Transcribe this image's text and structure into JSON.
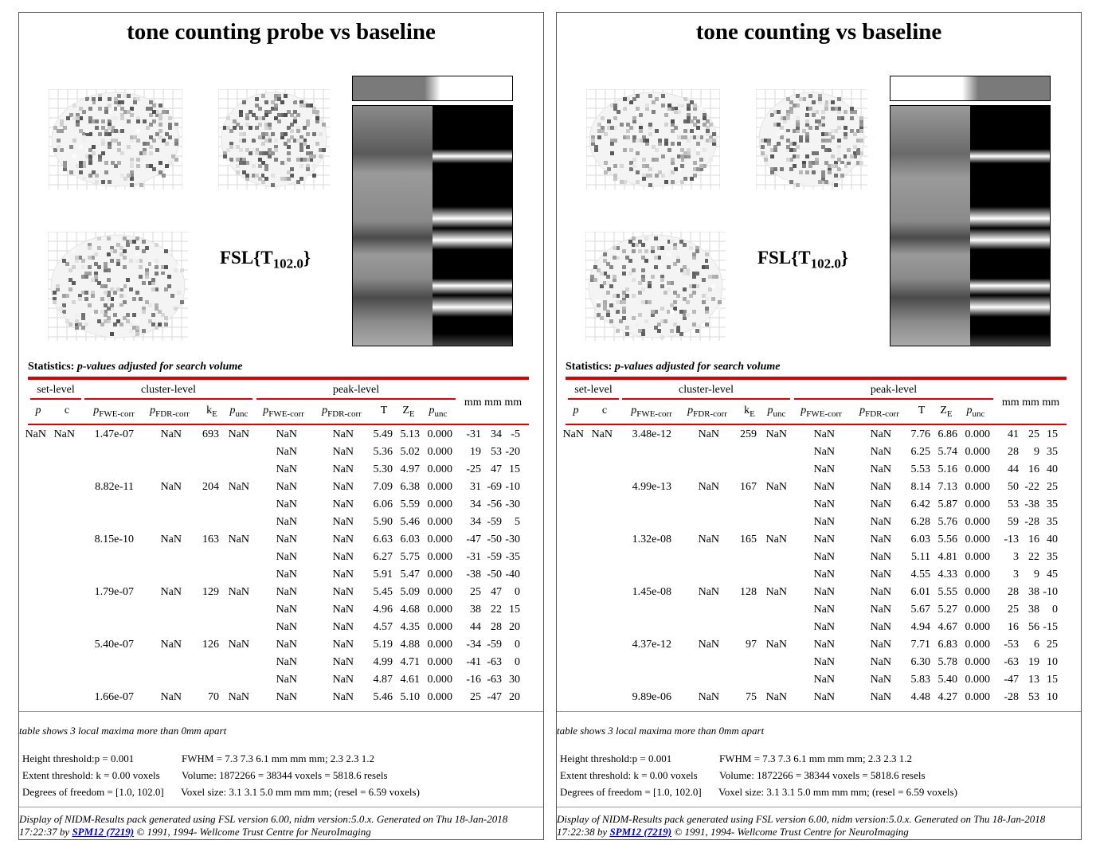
{
  "panels": [
    {
      "title": "tone counting probe vs baseline",
      "stat_label": "FSL{T",
      "stat_sub": "102.0",
      "stat_close": "}",
      "contrast_weights": [
        -1,
        1
      ],
      "stats_prefix": "Statistics:",
      "stats_italic": "p-values adjusted for search volume",
      "group_headers": [
        "set-level",
        "cluster-level",
        "peak-level",
        "mm mm mm"
      ],
      "col_headers": [
        "p",
        "c",
        "p",
        "FWE-corr",
        "p",
        "FDR-corr",
        "k",
        "E",
        "p",
        "unc",
        "p",
        "FWE-corr",
        "p",
        "FDR-corr",
        "T",
        "Z",
        "E",
        "p",
        "unc"
      ],
      "rows": [
        [
          "NaN",
          "NaN",
          "1.47e-07",
          "NaN",
          "693",
          "NaN",
          "NaN",
          "NaN",
          "5.49",
          "5.13",
          "0.000",
          "-31",
          "34",
          "-5"
        ],
        [
          "",
          "",
          "",
          "",
          "",
          "",
          "NaN",
          "NaN",
          "5.36",
          "5.02",
          "0.000",
          "19",
          "53",
          "-20"
        ],
        [
          "",
          "",
          "",
          "",
          "",
          "",
          "NaN",
          "NaN",
          "5.30",
          "4.97",
          "0.000",
          "-25",
          "47",
          "15"
        ],
        [
          "",
          "",
          "8.82e-11",
          "NaN",
          "204",
          "NaN",
          "NaN",
          "NaN",
          "7.09",
          "6.38",
          "0.000",
          "31",
          "-69",
          "-10"
        ],
        [
          "",
          "",
          "",
          "",
          "",
          "",
          "NaN",
          "NaN",
          "6.06",
          "5.59",
          "0.000",
          "34",
          "-56",
          "-30"
        ],
        [
          "",
          "",
          "",
          "",
          "",
          "",
          "NaN",
          "NaN",
          "5.90",
          "5.46",
          "0.000",
          "34",
          "-59",
          "5"
        ],
        [
          "",
          "",
          "8.15e-10",
          "NaN",
          "163",
          "NaN",
          "NaN",
          "NaN",
          "6.63",
          "6.03",
          "0.000",
          "-47",
          "-50",
          "-30"
        ],
        [
          "",
          "",
          "",
          "",
          "",
          "",
          "NaN",
          "NaN",
          "6.27",
          "5.75",
          "0.000",
          "-31",
          "-59",
          "-35"
        ],
        [
          "",
          "",
          "",
          "",
          "",
          "",
          "NaN",
          "NaN",
          "5.91",
          "5.47",
          "0.000",
          "-38",
          "-50",
          "-40"
        ],
        [
          "",
          "",
          "1.79e-07",
          "NaN",
          "129",
          "NaN",
          "NaN",
          "NaN",
          "5.45",
          "5.09",
          "0.000",
          "25",
          "47",
          "0"
        ],
        [
          "",
          "",
          "",
          "",
          "",
          "",
          "NaN",
          "NaN",
          "4.96",
          "4.68",
          "0.000",
          "38",
          "22",
          "15"
        ],
        [
          "",
          "",
          "",
          "",
          "",
          "",
          "NaN",
          "NaN",
          "4.57",
          "4.35",
          "0.000",
          "44",
          "28",
          "20"
        ],
        [
          "",
          "",
          "5.40e-07",
          "NaN",
          "126",
          "NaN",
          "NaN",
          "NaN",
          "5.19",
          "4.88",
          "0.000",
          "-34",
          "-59",
          "0"
        ],
        [
          "",
          "",
          "",
          "",
          "",
          "",
          "NaN",
          "NaN",
          "4.99",
          "4.71",
          "0.000",
          "-41",
          "-63",
          "0"
        ],
        [
          "",
          "",
          "",
          "",
          "",
          "",
          "NaN",
          "NaN",
          "4.87",
          "4.61",
          "0.000",
          "-16",
          "-63",
          "30"
        ],
        [
          "",
          "",
          "1.66e-07",
          "NaN",
          "70",
          "NaN",
          "NaN",
          "NaN",
          "5.46",
          "5.10",
          "0.000",
          "25",
          "-47",
          "20"
        ]
      ],
      "note": "table shows 3 local maxima more than 0mm apart",
      "params": [
        [
          "Height threshold:p = 0.001",
          "FWHM = 7.3 7.3 6.1 mm mm mm; 2.3 2.3 1.2"
        ],
        [
          "Extent threshold: k = 0.00 voxels",
          "Volume: 1872266 = 38344 voxels = 5818.6 resels"
        ],
        [
          "Degrees of freedom = [1.0, 102.0]",
          "Voxel size: 3.1 3.1 5.0 mm mm mm; (resel = 6.59 voxels)"
        ]
      ],
      "footer_pre": "Display of NIDM-Results pack generated using FSL version 6.00, nidm version:5.0.x. Generated on Thu 18-Jan-2018 17:22:37 by ",
      "footer_link": "SPM12 (7219)",
      "footer_post": " © 1991, 1994- Wellcome Trust Centre for NeuroImaging"
    },
    {
      "title": "tone counting vs baseline",
      "stat_label": "FSL{T",
      "stat_sub": "102.0",
      "stat_close": "}",
      "contrast_weights": [
        1,
        -1
      ],
      "stats_prefix": "Statistics:",
      "stats_italic": "p-values adjusted for search volume",
      "group_headers": [
        "set-level",
        "cluster-level",
        "peak-level",
        "mm mm mm"
      ],
      "col_headers": [
        "p",
        "c",
        "p",
        "FWE-corr",
        "p",
        "FDR-corr",
        "k",
        "E",
        "p",
        "unc",
        "p",
        "FWE-corr",
        "p",
        "FDR-corr",
        "T",
        "Z",
        "E",
        "p",
        "unc"
      ],
      "rows": [
        [
          "NaN",
          "NaN",
          "3.48e-12",
          "NaN",
          "259",
          "NaN",
          "NaN",
          "NaN",
          "7.76",
          "6.86",
          "0.000",
          "41",
          "25",
          "15"
        ],
        [
          "",
          "",
          "",
          "",
          "",
          "",
          "NaN",
          "NaN",
          "6.25",
          "5.74",
          "0.000",
          "28",
          "9",
          "35"
        ],
        [
          "",
          "",
          "",
          "",
          "",
          "",
          "NaN",
          "NaN",
          "5.53",
          "5.16",
          "0.000",
          "44",
          "16",
          "40"
        ],
        [
          "",
          "",
          "4.99e-13",
          "NaN",
          "167",
          "NaN",
          "NaN",
          "NaN",
          "8.14",
          "7.13",
          "0.000",
          "50",
          "-22",
          "25"
        ],
        [
          "",
          "",
          "",
          "",
          "",
          "",
          "NaN",
          "NaN",
          "6.42",
          "5.87",
          "0.000",
          "53",
          "-38",
          "35"
        ],
        [
          "",
          "",
          "",
          "",
          "",
          "",
          "NaN",
          "NaN",
          "6.28",
          "5.76",
          "0.000",
          "59",
          "-28",
          "35"
        ],
        [
          "",
          "",
          "1.32e-08",
          "NaN",
          "165",
          "NaN",
          "NaN",
          "NaN",
          "6.03",
          "5.56",
          "0.000",
          "-13",
          "16",
          "40"
        ],
        [
          "",
          "",
          "",
          "",
          "",
          "",
          "NaN",
          "NaN",
          "5.11",
          "4.81",
          "0.000",
          "3",
          "22",
          "35"
        ],
        [
          "",
          "",
          "",
          "",
          "",
          "",
          "NaN",
          "NaN",
          "4.55",
          "4.33",
          "0.000",
          "3",
          "9",
          "45"
        ],
        [
          "",
          "",
          "1.45e-08",
          "NaN",
          "128",
          "NaN",
          "NaN",
          "NaN",
          "6.01",
          "5.55",
          "0.000",
          "28",
          "38",
          "-10"
        ],
        [
          "",
          "",
          "",
          "",
          "",
          "",
          "NaN",
          "NaN",
          "5.67",
          "5.27",
          "0.000",
          "25",
          "38",
          "0"
        ],
        [
          "",
          "",
          "",
          "",
          "",
          "",
          "NaN",
          "NaN",
          "4.94",
          "4.67",
          "0.000",
          "16",
          "56",
          "-15"
        ],
        [
          "",
          "",
          "4.37e-12",
          "NaN",
          "97",
          "NaN",
          "NaN",
          "NaN",
          "7.71",
          "6.83",
          "0.000",
          "-53",
          "6",
          "25"
        ],
        [
          "",
          "",
          "",
          "",
          "",
          "",
          "NaN",
          "NaN",
          "6.30",
          "5.78",
          "0.000",
          "-63",
          "19",
          "10"
        ],
        [
          "",
          "",
          "",
          "",
          "",
          "",
          "NaN",
          "NaN",
          "5.83",
          "5.40",
          "0.000",
          "-47",
          "13",
          "15"
        ],
        [
          "",
          "",
          "9.89e-06",
          "NaN",
          "75",
          "NaN",
          "NaN",
          "NaN",
          "4.48",
          "4.27",
          "0.000",
          "-28",
          "53",
          "10"
        ]
      ],
      "note": "table shows 3 local maxima more than 0mm apart",
      "params": [
        [
          "Height threshold:p = 0.001",
          "FWHM = 7.3 7.3 6.1 mm mm mm; 2.3 2.3 1.2"
        ],
        [
          "Extent threshold: k = 0.00 voxels",
          "Volume: 1872266 = 38344 voxels = 5818.6 resels"
        ],
        [
          "Degrees of freedom = [1.0, 102.0]",
          "Voxel size: 3.1 3.1 5.0 mm mm mm; (resel = 6.59 voxels)"
        ]
      ],
      "footer_pre": "Display of NIDM-Results pack generated using FSL version 6.00, nidm version:5.0.x. Generated on Thu 18-Jan-2018 17:22:38 by ",
      "footer_link": "SPM12 (7219)",
      "footer_post": " © 1991, 1994- Wellcome Trust Centre for NeuroImaging"
    }
  ],
  "colors": {
    "accent_red": "#e00000",
    "link_blue": "#0000cc"
  }
}
